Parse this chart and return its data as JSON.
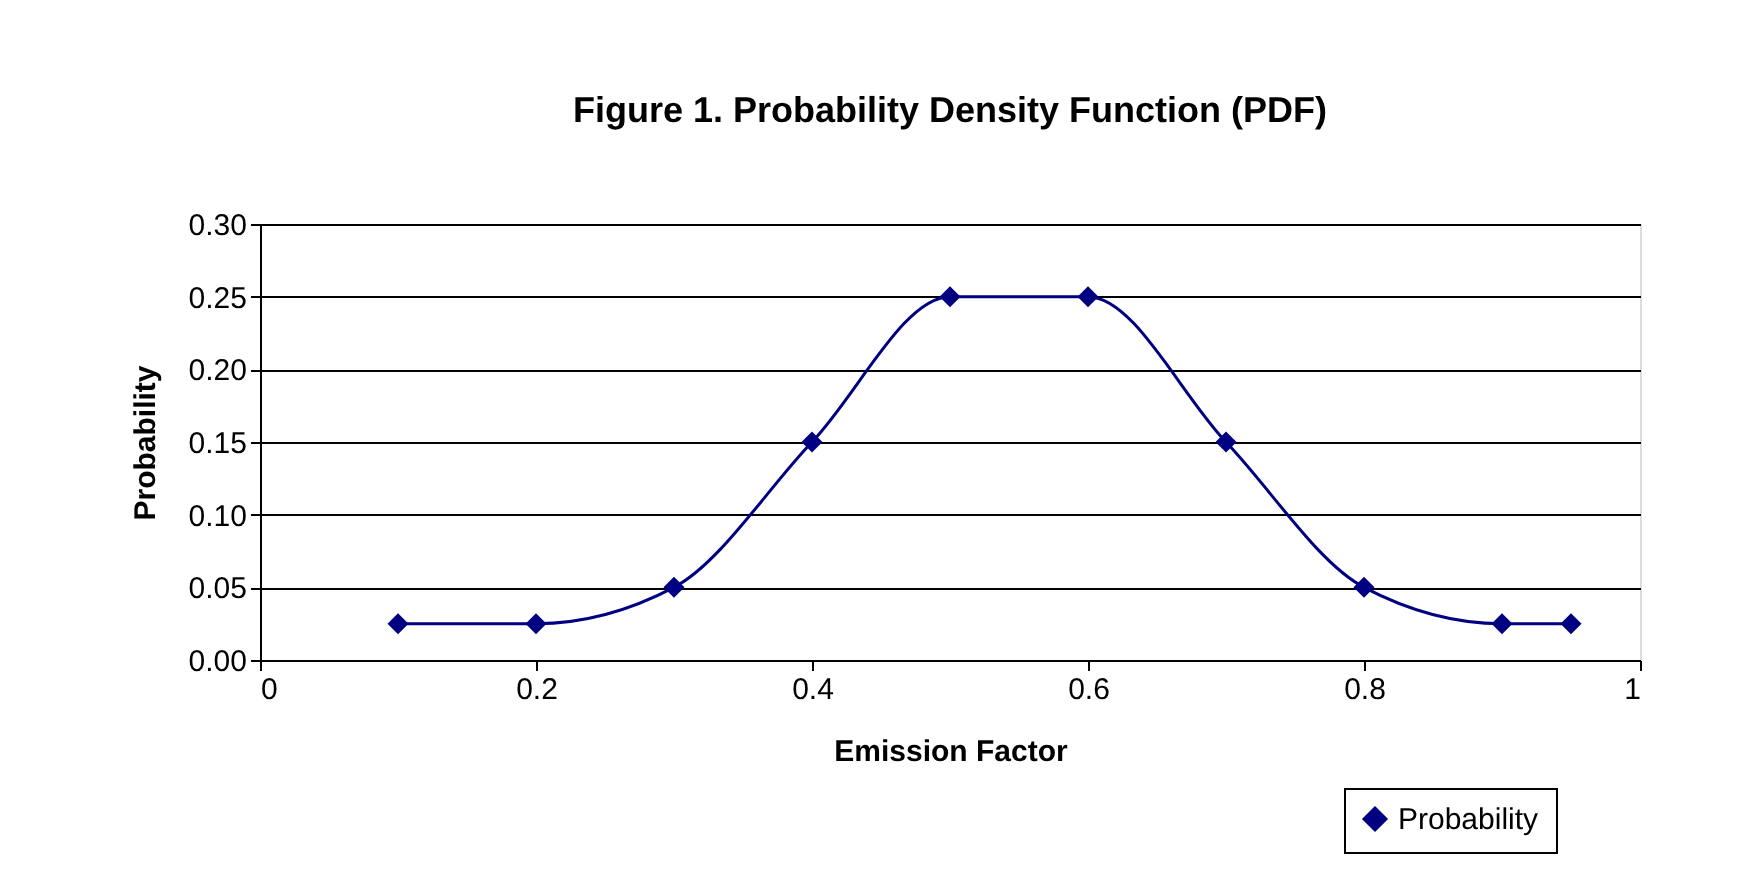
{
  "chart_data": {
    "type": "line",
    "title": "Figure 1. Probability Density Function (PDF)",
    "xlabel": "Emission Factor",
    "ylabel": "Probability",
    "x": [
      0.1,
      0.2,
      0.3,
      0.4,
      0.5,
      0.6,
      0.7,
      0.8,
      0.9,
      0.95
    ],
    "series": [
      {
        "name": "Probability",
        "color": "#000080",
        "values": [
          0.025,
          0.025,
          0.05,
          0.15,
          0.25,
          0.25,
          0.15,
          0.05,
          0.025,
          0.025
        ]
      }
    ],
    "xlim": [
      0,
      1
    ],
    "xticks": [
      0,
      0.2,
      0.4,
      0.6,
      0.8,
      1
    ],
    "ylim": [
      0,
      0.3
    ],
    "yticks": [
      {
        "value": 0,
        "label": "0.00"
      },
      {
        "value": 0.05,
        "label": "0.05"
      },
      {
        "value": 0.1,
        "label": "0.10"
      },
      {
        "value": 0.15,
        "label": "0.15"
      },
      {
        "value": 0.2,
        "label": "0.20"
      },
      {
        "value": 0.25,
        "label": "0.25"
      },
      {
        "value": 0.3,
        "label": "0.30"
      }
    ],
    "grid": "y",
    "legend": "bottom right",
    "marker": "diamond",
    "line_style": "solid"
  }
}
